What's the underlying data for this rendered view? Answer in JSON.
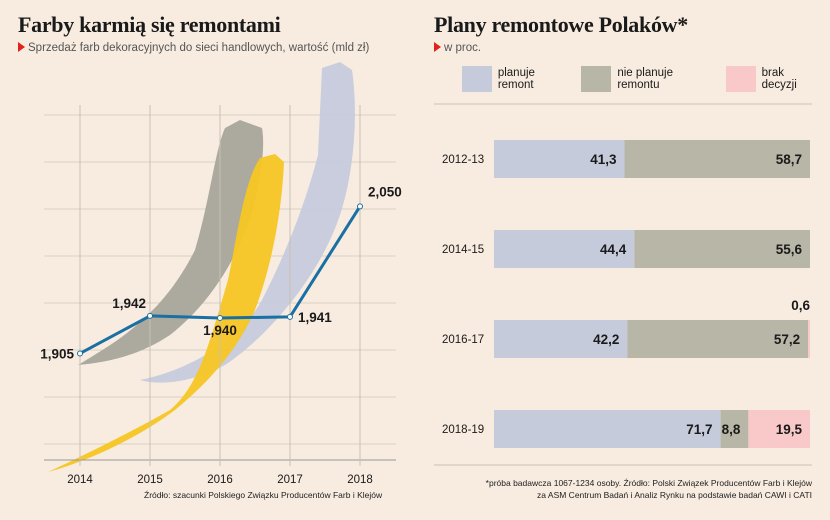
{
  "chart_data": [
    {
      "type": "line",
      "title": "Farby karmią się remontami",
      "subtitle": "Sprzedaż farb dekoracyjnych do sieci handlowych, wartość (mld zł)",
      "x": [
        "2014",
        "2015",
        "2016",
        "2017",
        "2018"
      ],
      "series": [
        {
          "values": [
            1.905,
            1.942,
            1.94,
            1.941,
            2.05
          ]
        }
      ],
      "value_labels": [
        "1,905",
        "1,942",
        "1,940",
        "1,941",
        "2,050"
      ],
      "ylim": [
        1.8,
        2.14
      ],
      "grid": true,
      "line_color": "#1a6fa3",
      "source": "Źródło: szacunki Polskiego Związku Producentów Farb i Klejów"
    },
    {
      "type": "bar",
      "stacked": true,
      "orientation": "horizontal",
      "title": "Plany remontowe Polaków*",
      "subtitle": "w proc.",
      "categories": [
        "2012-13",
        "2014-15",
        "2016-17",
        "2018-19"
      ],
      "series": [
        {
          "name": "planuje remont",
          "color": "#c6cbdc",
          "values": [
            41.3,
            44.4,
            42.2,
            71.7
          ],
          "labels": [
            "41,3",
            "44,4",
            "42,2",
            "71,7"
          ]
        },
        {
          "name": "nie planuje remontu",
          "color": "#b8b6a7",
          "values": [
            58.7,
            55.6,
            57.2,
            8.8
          ],
          "labels": [
            "58,7",
            "55,6",
            "57,2",
            "8,8"
          ]
        },
        {
          "name": "brak decyzji",
          "color": "#f9c9c9",
          "values": [
            0,
            0,
            0.6,
            19.5
          ],
          "labels": [
            "",
            "",
            "0,6",
            "19,5"
          ]
        }
      ],
      "xlim": [
        0,
        100
      ],
      "footnote_1": "*próba badawcza 1067-1234 osoby. Źródło: Polski Związek Producentów Farb i Klejów",
      "footnote_2": "za ASM Centrum Badań i Analiz Rynku na podstawie badań CAWI i CATI"
    }
  ]
}
